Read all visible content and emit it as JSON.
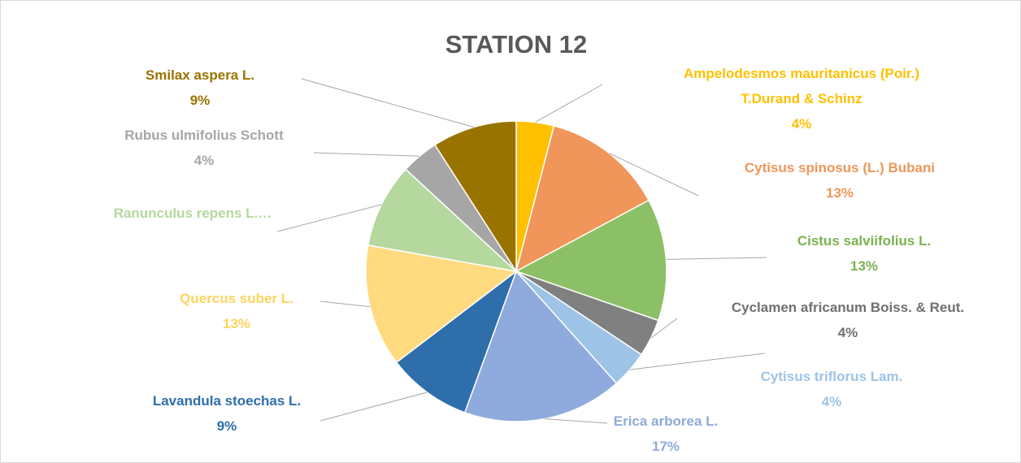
{
  "chart_data": {
    "type": "pie",
    "title": "STATION 12",
    "categories": [
      "Ampelodesmos mauritanicus (Poir.) T.Durand & Schinz",
      "Cytisus spinosus (L.) Bubani",
      "Cistus salviifolius L.",
      "Cyclamen africanum Boiss. & Reut.",
      "Cytisus triflorus Lam.",
      "Erica arborea L.",
      "Lavandula stoechas L.",
      "Quercus suber L.",
      "Ranunculus repens L.…",
      "Rubus ulmifolius Schott",
      "Smilax aspera L."
    ],
    "values": [
      4,
      13,
      13,
      4,
      4,
      17,
      9,
      13,
      9,
      4,
      9
    ],
    "value_labels": [
      "4%",
      "13%",
      "13%",
      "4%",
      "4%",
      "17%",
      "9%",
      "13%",
      null,
      "4%",
      "9%"
    ],
    "colors": [
      "#FFC000",
      "#F0965A",
      "#8CC066",
      "#808080",
      "#9DC3E6",
      "#8FAADC",
      "#2E6EAA",
      "#FFDA7F",
      "#B5D89E",
      "#A6A6A6",
      "#997300"
    ],
    "label_colors": [
      "#FFC000",
      "#F0965A",
      "#7AB24F",
      "#707070",
      "#9DC3E6",
      "#8FAADC",
      "#2E6EAA",
      "#FFD45C",
      "#B5D89E",
      "#A6A6A6",
      "#997300"
    ]
  }
}
